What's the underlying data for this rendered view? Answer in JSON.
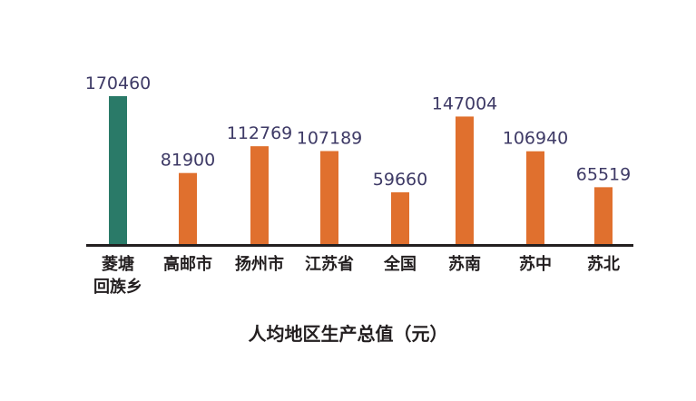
{
  "title": "人均地区生产总值（元）",
  "colors": {
    "highlight": "#2a7a68",
    "bar": "#e0702e",
    "axis": "#231f20",
    "label": "#3e3a66",
    "category": "#231f20"
  },
  "chart_data": {
    "type": "bar",
    "title": "人均地区生产总值（元）",
    "xlabel": "",
    "ylabel": "",
    "ylim": [
      0,
      170460
    ],
    "grid": false,
    "legend": "none",
    "categories": [
      "菱塘\n回族乡",
      "高邮市",
      "扬州市",
      "江苏省",
      "全国",
      "苏南",
      "苏中",
      "苏北"
    ],
    "values": [
      170460,
      81900,
      112769,
      107189,
      59660,
      147004,
      106940,
      65519
    ],
    "data_labels": [
      "170460",
      "81900",
      "112769",
      "107189",
      "59660",
      "147004",
      "106940",
      "65519"
    ],
    "highlight_index": 0
  }
}
